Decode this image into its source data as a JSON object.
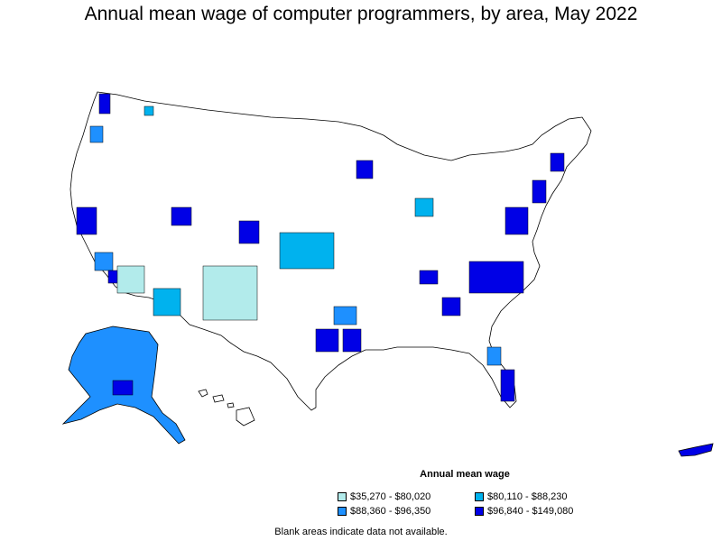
{
  "title": "Annual mean wage of computer programmers, by area, May 2022",
  "legend": {
    "title": "Annual mean wage",
    "items": [
      {
        "label": "$35,270 - $80,020",
        "color": "#b2ebeb"
      },
      {
        "label": "$80,110 - $88,230",
        "color": "#00b2ee"
      },
      {
        "label": "$88,360 - $96,350",
        "color": "#1e90ff"
      },
      {
        "label": "$96,840 - $149,080",
        "color": "#0000e6"
      }
    ]
  },
  "footnote": "Blank areas indicate data not available.",
  "colors": {
    "border": "#000000",
    "blank": "#ffffff"
  }
}
